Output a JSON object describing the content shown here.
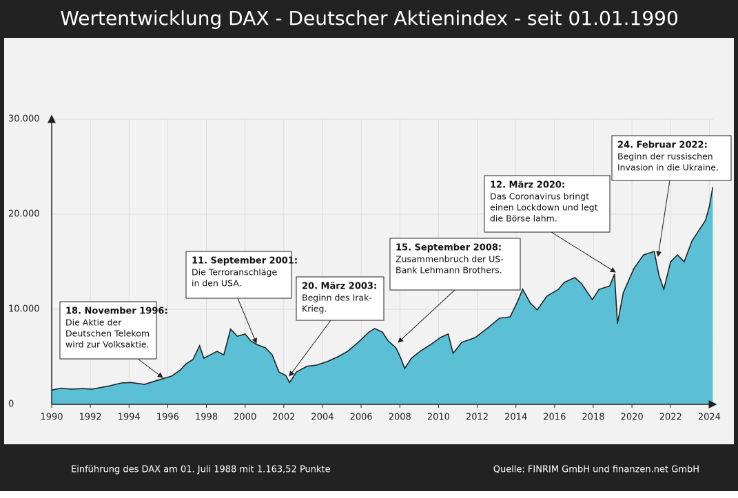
{
  "chart_data": {
    "type": "area",
    "title": "Wertentwicklung DAX  -  Deutscher Aktienindex  -  seit 01.01.1990",
    "footer_left": "Einführung des DAX am 01. Juli 1988 mit 1.163,52 Punkte",
    "footer_right": "Quelle: FINRIM GmbH und finanzen.net GmbH",
    "color": "#5bc0d6",
    "line_color": "#222222",
    "grid": true,
    "xlim": [
      1990,
      2024.2
    ],
    "ylim": [
      0,
      30000
    ],
    "xticks": [
      1990,
      1992,
      1994,
      1996,
      1998,
      2000,
      2002,
      2004,
      2006,
      2008,
      2010,
      2012,
      2014,
      2016,
      2018,
      2020,
      2022,
      2024
    ],
    "yticks": [
      0,
      {
        "value": 10000,
        "label": "10.000"
      },
      {
        "value": 20000,
        "label": "20.000"
      },
      {
        "value": 30000,
        "label": "30.000"
      }
    ],
    "x": [
      1990,
      1990.5,
      1991,
      1991.6,
      1992.1,
      1993,
      1993.6,
      1994.1,
      1994.8,
      1995.5,
      1996.2,
      1996.65,
      1996.95,
      1997.3,
      1997.65,
      1997.87,
      1998.2,
      1998.55,
      1998.9,
      1999.25,
      1999.6,
      2000,
      2000.3,
      2000.6,
      2001.05,
      2001.4,
      2001.75,
      2002.1,
      2002.3,
      2002.65,
      2003.2,
      2003.7,
      2004.25,
      2004.8,
      2005.3,
      2005.85,
      2006.4,
      2006.7,
      2007.1,
      2007.4,
      2007.8,
      2008.05,
      2008.25,
      2008.6,
      2009.05,
      2009.6,
      2010.1,
      2010.5,
      2010.75,
      2011.2,
      2011.9,
      2012.6,
      2013.15,
      2013.7,
      2014.05,
      2014.35,
      2014.75,
      2015.1,
      2015.6,
      2016.2,
      2016.5,
      2017.05,
      2017.4,
      2017.95,
      2018.3,
      2018.85,
      2019.1,
      2019.25,
      2019.55,
      2020.1,
      2020.6,
      2021.15,
      2021.4,
      2021.65,
      2022,
      2022.35,
      2022.7,
      2023.1,
      2023.45,
      2023.8,
      2024,
      2024.18
    ],
    "values": [
      1500,
      1700,
      1600,
      1650,
      1600,
      1950,
      2250,
      2300,
      2100,
      2550,
      2970,
      3600,
      4270,
      4700,
      6160,
      4850,
      5200,
      5580,
      5200,
      7900,
      7170,
      7400,
      6670,
      6300,
      5940,
      5200,
      3400,
      3040,
      2300,
      3400,
      4000,
      4130,
      4500,
      5000,
      5580,
      6520,
      7600,
      7970,
      7600,
      6670,
      5940,
      4850,
      3770,
      4850,
      5580,
      6300,
      7030,
      7400,
      5360,
      6520,
      7030,
      8120,
      9060,
      9200,
      10650,
      12100,
      10650,
      9930,
      11380,
      12100,
      12830,
      13330,
      12680,
      11010,
      12100,
      12460,
      13700,
      8480,
      11740,
      14280,
      15720,
      16090,
      13550,
      12100,
      15000,
      15720,
      15000,
      17170,
      18260,
      19350,
      20800,
      22830
    ],
    "annotations": [
      {
        "title": "18. November 1996:",
        "lines": [
          "Die Aktie der",
          "Deutschen Telekom",
          "wird zur Volksaktie."
        ]
      },
      {
        "title": "11. September 2001:",
        "lines": [
          "Die Terroranschläge",
          "in den USA."
        ]
      },
      {
        "title": "20. März 2003:",
        "lines": [
          "Beginn des Irak-",
          "Krieg."
        ]
      },
      {
        "title": "15. September 2008:",
        "lines": [
          "Zusammenbruch der US-",
          "Bank Lehmann Brothers."
        ]
      },
      {
        "title": "12. März 2020:",
        "lines": [
          "Das Coronavirus bringt",
          "einen Lockdown und legt",
          "die Börse lahm."
        ]
      },
      {
        "title": "24. Februar 2022:",
        "lines": [
          "Beginn der russischen",
          "Invasion in die Ukraine."
        ]
      }
    ]
  }
}
